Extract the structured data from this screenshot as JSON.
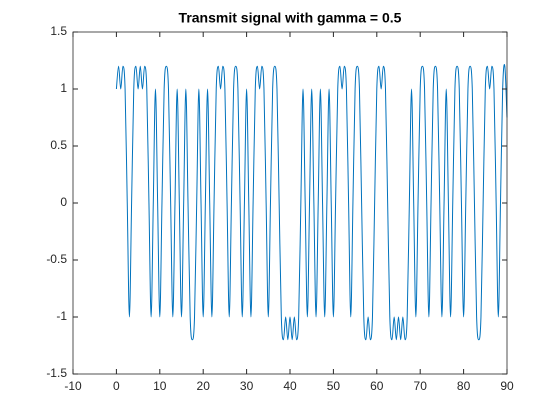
{
  "chart_data": {
    "type": "line",
    "title": "Transmit signal with gamma = 0.5",
    "color": "#0072bd",
    "x": [
      0,
      0.5,
      1,
      1.5,
      2,
      2.5,
      3,
      3.5,
      4,
      4.5,
      5,
      5.5,
      6,
      6.5,
      7,
      7.5,
      8,
      8.5,
      9,
      9.5,
      10,
      10.5,
      11,
      11.5,
      12,
      12.5,
      13,
      13.5,
      14,
      14.5,
      15,
      15.5,
      16,
      16.5,
      17,
      17.5,
      18,
      18.5,
      19,
      19.5,
      20,
      20.5,
      21,
      21.5,
      22,
      22.5,
      23,
      23.5,
      24,
      24.5,
      25,
      25.5,
      26,
      26.5,
      27,
      27.5,
      28,
      28.5,
      29,
      29.5,
      30,
      30.5,
      31,
      31.5,
      32,
      32.5,
      33,
      33.5,
      34,
      34.5,
      35,
      35.5,
      36,
      36.5,
      37,
      37.5,
      38,
      38.5,
      39,
      39.5,
      40,
      40.5,
      41,
      41.5,
      42,
      42.5,
      43,
      43.5,
      44,
      44.5,
      45,
      45.5,
      46,
      46.5,
      47,
      47.5,
      48,
      48.5,
      49,
      49.5,
      50,
      50.5,
      51,
      51.5,
      52,
      52.5,
      53,
      53.5,
      54,
      54.5,
      55,
      55.5,
      56,
      56.5,
      57,
      57.5,
      58,
      58.5,
      59,
      59.5,
      60,
      60.5,
      61,
      61.5,
      62,
      62.5,
      63,
      63.5,
      64,
      64.5,
      65,
      65.5,
      66,
      66.5,
      67,
      67.5,
      68,
      68.5,
      69,
      69.5,
      70,
      70.5,
      71,
      71.5,
      72,
      72.5,
      73,
      73.5,
      74,
      74.5,
      75,
      75.5,
      76,
      76.5,
      77,
      77.5,
      78,
      78.5,
      79,
      79.5,
      80,
      80.5,
      81,
      81.5,
      82,
      82.5,
      83,
      83.5,
      84,
      84.5,
      85,
      85.5,
      86,
      86.5,
      87,
      87.5,
      88,
      88.5,
      89,
      89.5,
      90
    ],
    "values": [
      1,
      1.2,
      1,
      1.2,
      1,
      0,
      -1,
      0,
      1,
      1.2,
      1,
      1.2,
      1,
      1.2,
      1,
      0,
      -1,
      0,
      1,
      0,
      -1,
      0,
      1,
      1.2,
      1,
      0,
      -1,
      0,
      1,
      0,
      -1,
      0,
      1,
      0,
      -1,
      -1.2,
      -1,
      0,
      1,
      0,
      -1,
      0,
      1,
      0,
      -1,
      0,
      1,
      1.2,
      1,
      1.2,
      1,
      0,
      -1,
      0,
      1,
      1.2,
      1,
      0,
      -1,
      0,
      1,
      0,
      -1,
      0,
      1,
      1.2,
      1,
      1.2,
      1,
      0,
      -1,
      0,
      1,
      1.2,
      1,
      0,
      -1,
      -1.2,
      -1,
      -1.2,
      -1,
      -1.2,
      -1,
      -1.2,
      -1,
      0,
      1,
      0,
      -1,
      0,
      1,
      0,
      -1,
      0,
      1,
      0,
      -1,
      0,
      1,
      0,
      -1,
      0,
      1,
      1.2,
      1,
      1.2,
      1,
      0,
      -1,
      0,
      1,
      1.2,
      1,
      0,
      -1,
      -1.2,
      -1,
      -1.2,
      -1,
      0,
      1,
      1.2,
      1,
      1.2,
      1,
      0,
      -1,
      -1.2,
      -1,
      -1.2,
      -1,
      -1.2,
      -1,
      -1.2,
      -1,
      0,
      1,
      0,
      -1,
      0,
      1,
      1.2,
      1,
      0,
      -1,
      0,
      1,
      1.2,
      1,
      0,
      -1,
      0,
      1,
      0,
      -1,
      0,
      1,
      1.2,
      1,
      0,
      -1,
      0,
      1,
      1.2,
      1,
      0,
      -1,
      -1.2,
      -1,
      0,
      1,
      1.2,
      1,
      1.2,
      1,
      0,
      -1,
      0,
      1,
      1.2,
      0.75
    ],
    "xlim": [
      -10,
      90
    ],
    "xticks": [
      -10,
      0,
      10,
      20,
      30,
      40,
      50,
      60,
      70,
      80,
      90
    ],
    "ylim": [
      -1.5,
      1.5
    ],
    "yticks": [
      -1.5,
      -1,
      -0.5,
      0,
      0.5,
      1,
      1.5
    ]
  }
}
